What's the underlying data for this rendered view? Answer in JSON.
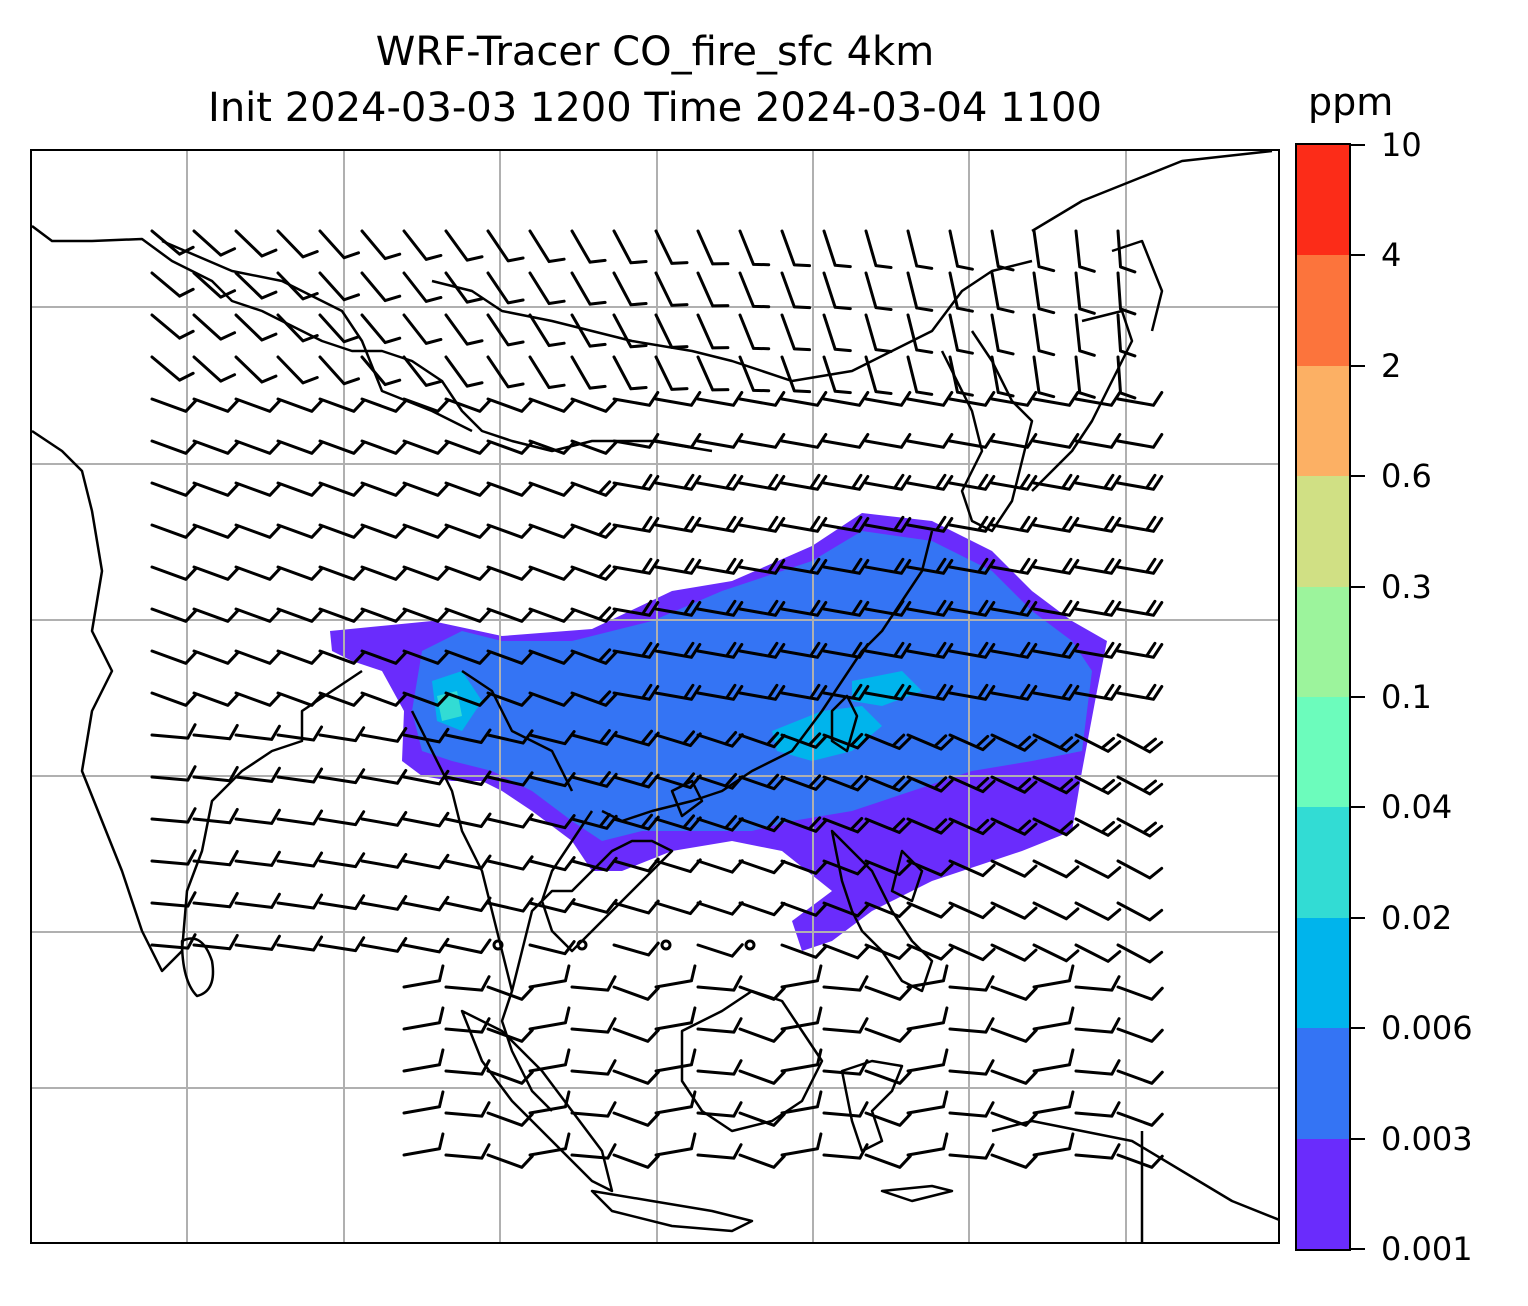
{
  "title": {
    "line1": "WRF-Tracer CO_fire_sfc 4km",
    "line2": "Init 2024-03-03 1200 Time 2024-03-04 1100"
  },
  "colorbar": {
    "unit": "ppm",
    "levels": [
      "0.001",
      "0.003",
      "0.006",
      "0.02",
      "0.04",
      "0.1",
      "0.3",
      "0.6",
      "2",
      "4",
      "10"
    ],
    "colors": [
      "#6a2cfc",
      "#3474f4",
      "#00b4ec",
      "#32dcd4",
      "#6cfcbc",
      "#9cf49c",
      "#d0e084",
      "#fcb064",
      "#fc743c",
      "#fc2c18"
    ]
  },
  "map": {
    "gridlines": true,
    "coastline_color": "#000000",
    "grid_color": "#b0b0b0"
  }
}
